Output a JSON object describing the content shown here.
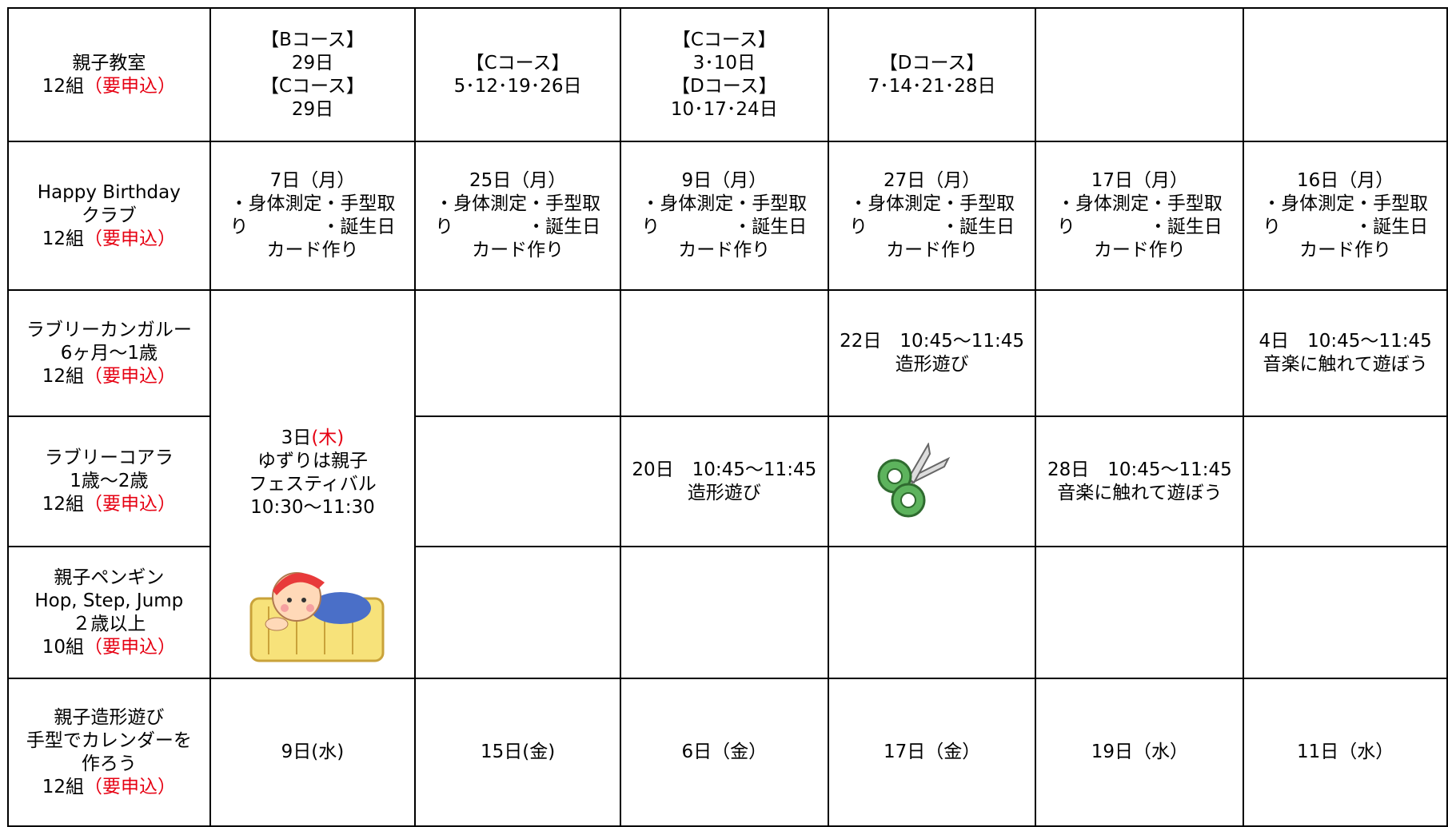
{
  "table": {
    "rows": [
      {
        "label": [
          [
            "親子教室"
          ],
          [
            "12組",
            {
              "text": "（要申込）",
              "color": "#e60012"
            }
          ]
        ],
        "cells": [
          {
            "lines": [
              [
                "【Bコース】"
              ],
              [
                "29日"
              ],
              [
                "【Cコース】"
              ],
              [
                "29日"
              ]
            ]
          },
          {
            "lines": [
              [
                "【Cコース】"
              ],
              [
                "5･12･19･26日"
              ]
            ]
          },
          {
            "lines": [
              [
                "【Cコース】"
              ],
              [
                "3･10日"
              ],
              [
                "【Dコース】"
              ],
              [
                "10･17･24日"
              ]
            ]
          },
          {
            "lines": [
              [
                "【Dコース】"
              ],
              [
                "7･14･21･28日"
              ]
            ]
          },
          {
            "lines": []
          },
          {
            "lines": []
          }
        ]
      },
      {
        "label": [
          [
            "Happy Birthday"
          ],
          [
            "クラブ"
          ],
          [
            "12組",
            {
              "text": "（要申込）",
              "color": "#e60012"
            }
          ]
        ],
        "cells": [
          {
            "lines": [
              [
                "7日（月）"
              ],
              [
                "・身体測定・手型取"
              ],
              [
                "り　　　　・誕生日"
              ],
              [
                "カード作り"
              ]
            ]
          },
          {
            "lines": [
              [
                "25日（月）"
              ],
              [
                "・身体測定・手型取"
              ],
              [
                "り　　　　・誕生日"
              ],
              [
                "カード作り"
              ]
            ]
          },
          {
            "lines": [
              [
                "9日（月）"
              ],
              [
                "・身体測定・手型取"
              ],
              [
                "り　　　　・誕生日"
              ],
              [
                "カード作り"
              ]
            ]
          },
          {
            "lines": [
              [
                "27日（月）"
              ],
              [
                "・身体測定・手型取"
              ],
              [
                "り　　　　・誕生日"
              ],
              [
                "カード作り"
              ]
            ]
          },
          {
            "lines": [
              [
                "17日（月）"
              ],
              [
                "・身体測定・手型取"
              ],
              [
                "り　　　　・誕生日"
              ],
              [
                "カード作り"
              ]
            ]
          },
          {
            "lines": [
              [
                "16日（月）"
              ],
              [
                "・身体測定・手型取"
              ],
              [
                "り　　　　・誕生日"
              ],
              [
                "カード作り"
              ]
            ]
          }
        ]
      },
      {
        "label": [
          [
            "ラブリーカンガルー"
          ],
          [
            "6ヶ月～1歳"
          ],
          [
            "12組",
            {
              "text": "（要申込）",
              "color": "#e60012"
            }
          ]
        ],
        "cells": [
          {
            "rowspan": 3,
            "lines": [
              [
                "3日",
                {
                  "text": "(木)",
                  "color": "#e60012"
                }
              ],
              [
                "ゆずりは親子"
              ],
              [
                "フェスティバル"
              ],
              [
                "10:30～11:30"
              ]
            ]
          },
          {
            "lines": []
          },
          {
            "lines": []
          },
          {
            "lines": [
              [
                "22日　10:45～11:45"
              ],
              [
                "造形遊び"
              ]
            ]
          },
          {
            "lines": []
          },
          {
            "lines": [
              [
                "4日　10:45～11:45"
              ],
              [
                "音楽に触れて遊ぼう"
              ]
            ]
          }
        ]
      },
      {
        "label": [
          [
            "ラブリーコアラ"
          ],
          [
            "1歳～2歳"
          ],
          [
            "12組",
            {
              "text": "（要申込）",
              "color": "#e60012"
            }
          ]
        ],
        "cells": [
          {
            "lines": []
          },
          {
            "lines": [
              [
                "20日　10:45～11:45"
              ],
              [
                "造形遊び"
              ]
            ]
          },
          {
            "lines": []
          },
          {
            "lines": [
              [
                "28日　10:45～11:45"
              ],
              [
                "音楽に触れて遊ぼう"
              ]
            ]
          },
          {
            "lines": []
          }
        ]
      },
      {
        "label": [
          [
            "親子ペンギン"
          ],
          [
            "Hop, Step, Jump"
          ],
          [
            "２歳以上"
          ],
          [
            "10組",
            {
              "text": "（要申込）",
              "color": "#e60012"
            }
          ]
        ],
        "cells": [
          {
            "lines": []
          },
          {
            "lines": []
          },
          {
            "lines": []
          },
          {
            "lines": []
          },
          {
            "lines": []
          }
        ]
      },
      {
        "label": [
          [
            "親子造形遊び"
          ],
          [
            "手型でカレンダーを"
          ],
          [
            "作ろう"
          ],
          [
            "12組",
            {
              "text": "（要申込）",
              "color": "#e60012"
            }
          ]
        ],
        "cells": [
          {
            "lines": [
              [
                "9日(水)"
              ]
            ]
          },
          {
            "lines": [
              [
                "15日(金)"
              ]
            ]
          },
          {
            "lines": [
              [
                "6日（金）"
              ]
            ]
          },
          {
            "lines": [
              [
                "17日（金）"
              ]
            ]
          },
          {
            "lines": [
              [
                "19日（水）"
              ]
            ]
          },
          {
            "lines": [
              [
                "11日（水）"
              ]
            ]
          }
        ]
      }
    ]
  }
}
